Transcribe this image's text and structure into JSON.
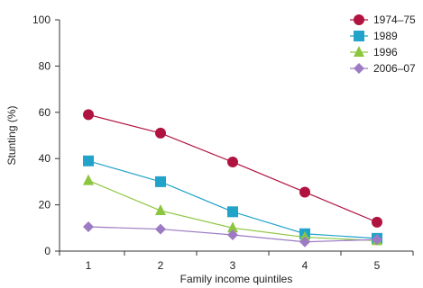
{
  "chart_data": {
    "type": "line",
    "title": "",
    "xlabel": "Family income quintiles",
    "ylabel": "Stunting (%)",
    "x": [
      1,
      2,
      3,
      4,
      5
    ],
    "xticks": [
      "1",
      "2",
      "3",
      "4",
      "5"
    ],
    "xlim": [
      0.6,
      5.5
    ],
    "ylim": [
      0,
      100
    ],
    "yticks": [
      "0",
      "20",
      "40",
      "60",
      "80",
      "100"
    ],
    "grid": false,
    "legend_position": "top-right",
    "series": [
      {
        "name": "1974–75",
        "values": [
          59,
          51,
          38.5,
          25.5,
          12.5
        ],
        "color": "#b0133f",
        "marker": "circle"
      },
      {
        "name": "1989",
        "values": [
          39,
          30,
          17,
          7.5,
          5.5
        ],
        "color": "#22a3c9",
        "marker": "square"
      },
      {
        "name": "1996",
        "values": [
          30.5,
          17.5,
          10,
          6,
          4.5
        ],
        "color": "#8cc63f",
        "marker": "triangle"
      },
      {
        "name": "2006–07",
        "values": [
          10.5,
          9.5,
          7,
          4,
          5
        ],
        "color": "#9d7bc4",
        "marker": "diamond"
      }
    ]
  }
}
